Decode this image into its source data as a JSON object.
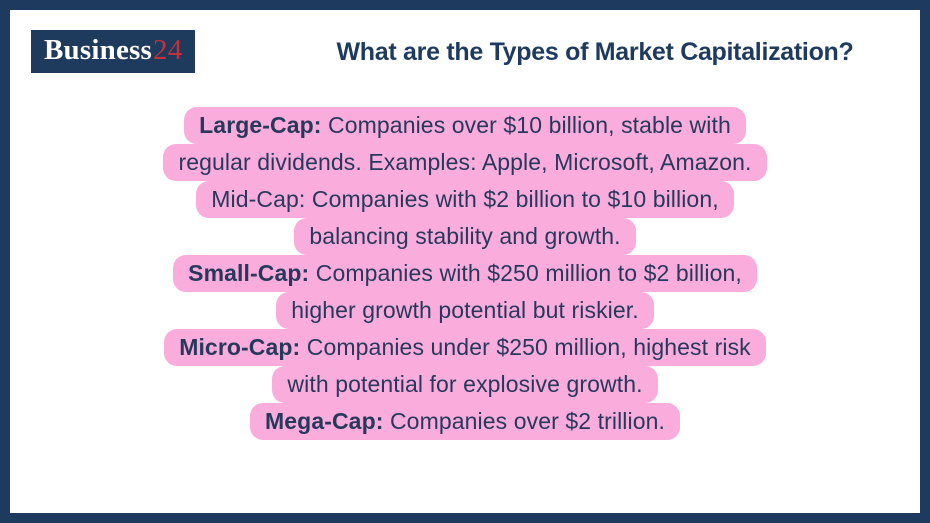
{
  "theme": {
    "navy": "#1E3A5F",
    "navy-logo": "#1E3A5C",
    "pink": "#FAACDC",
    "red": "#C5303B",
    "text": "#27395B"
  },
  "header": {
    "logo_text": "Business",
    "logo_suffix": "24",
    "title": "What are the Types of Market Capitalization?"
  },
  "content": {
    "lines": [
      {
        "bold": "Large-Cap:",
        "text": " Companies over $10 billion, stable with"
      },
      {
        "bold": "",
        "text": "regular dividends. Examples: Apple, Microsoft, Amazon."
      },
      {
        "bold": "",
        "text": "Mid-Cap: Companies with $2 billion to $10 billion,"
      },
      {
        "bold": "",
        "text": "balancing stability and growth."
      },
      {
        "bold": "Small-Cap:",
        "text": " Companies with $250 million to $2 billion,"
      },
      {
        "bold": "",
        "text": "higher growth potential but riskier."
      },
      {
        "bold": "Micro-Cap:",
        "text": " Companies under $250 million, highest risk"
      },
      {
        "bold": "",
        "text": "with potential for explosive growth."
      },
      {
        "bold": "Mega-Cap:",
        "text": " Companies over $2 trillion."
      }
    ]
  }
}
